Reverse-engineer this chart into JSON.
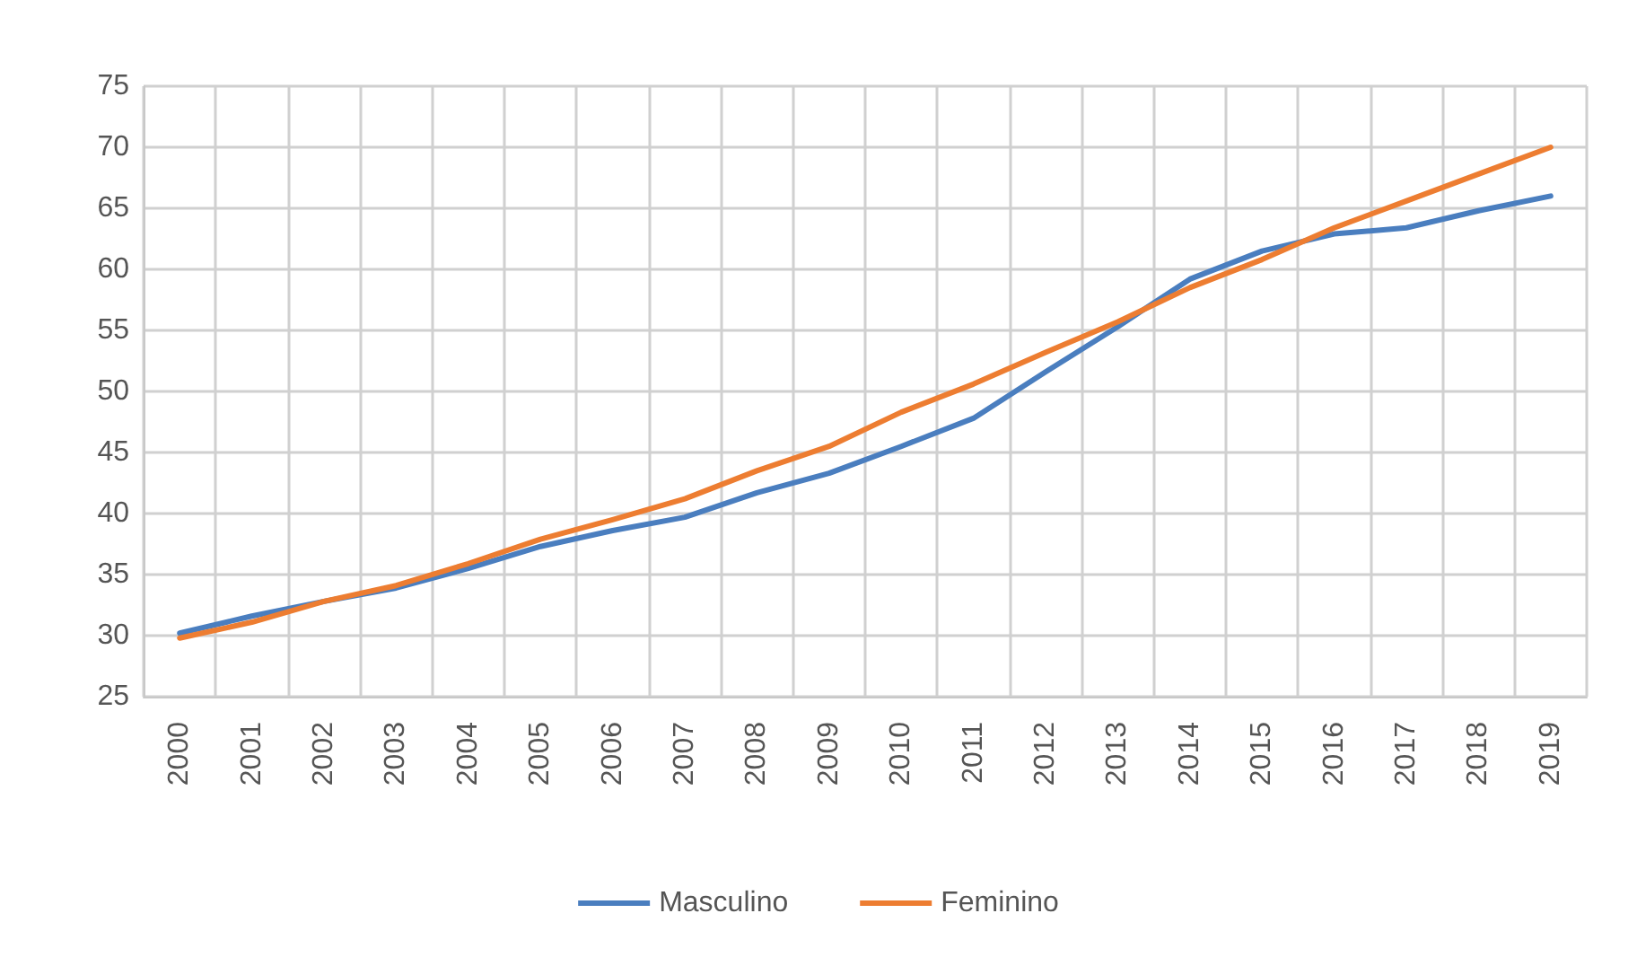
{
  "chart_data": {
    "type": "line",
    "categories": [
      "2000",
      "2001",
      "2002",
      "2003",
      "2004",
      "2005",
      "2006",
      "2007",
      "2008",
      "2009",
      "2010",
      "2011",
      "2012",
      "2013",
      "2014",
      "2015",
      "2016",
      "2017",
      "2018",
      "2019"
    ],
    "series": [
      {
        "name": "Masculino",
        "color": "#4a7ebf",
        "values": [
          30.2,
          31.6,
          32.8,
          33.9,
          35.5,
          37.3,
          38.6,
          39.7,
          41.7,
          43.3,
          45.5,
          47.8,
          51.6,
          55.3,
          59.2,
          61.5,
          62.9,
          63.4,
          64.8,
          66.0
        ]
      },
      {
        "name": "Feminino",
        "color": "#ed7d31",
        "values": [
          29.8,
          31.1,
          32.8,
          34.1,
          35.9,
          37.9,
          39.5,
          41.2,
          43.5,
          45.5,
          48.3,
          50.6,
          53.2,
          55.7,
          58.5,
          60.8,
          63.4,
          65.6,
          67.8,
          70.0
        ]
      }
    ],
    "ylim": [
      25,
      75
    ],
    "yticks": [
      25,
      30,
      35,
      40,
      45,
      50,
      55,
      60,
      65,
      70,
      75
    ],
    "grid": true,
    "legend": "bottom",
    "marker": "none",
    "line_style": "solid"
  }
}
